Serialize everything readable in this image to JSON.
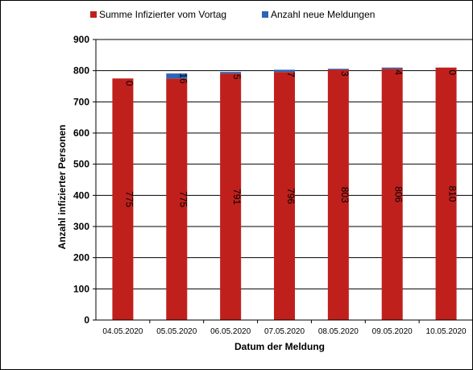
{
  "chart_data": {
    "type": "bar",
    "stacked": true,
    "title": "",
    "xlabel": "Datum der Meldung",
    "ylabel": "Anzahl infizierter Personen",
    "ylim": [
      0,
      900
    ],
    "y_ticks": [
      "0",
      "100",
      "200",
      "300",
      "400",
      "500",
      "600",
      "700",
      "800",
      "900"
    ],
    "grid": true,
    "legend_position": "top",
    "categories": [
      "04.05.2020",
      "05.05.2020",
      "06.05.2020",
      "07.05.2020",
      "08.05.2020",
      "09.05.2020",
      "10.05.2020"
    ],
    "series": [
      {
        "name": "Summe Infizierter vom Vortag",
        "color": "#C0201C",
        "values": [
          775,
          775,
          791,
          796,
          803,
          806,
          810
        ]
      },
      {
        "name": "Anzahl neue Meldungen",
        "color": "#2E64B5",
        "values": [
          0,
          16,
          5,
          7,
          3,
          4,
          0
        ]
      }
    ]
  }
}
